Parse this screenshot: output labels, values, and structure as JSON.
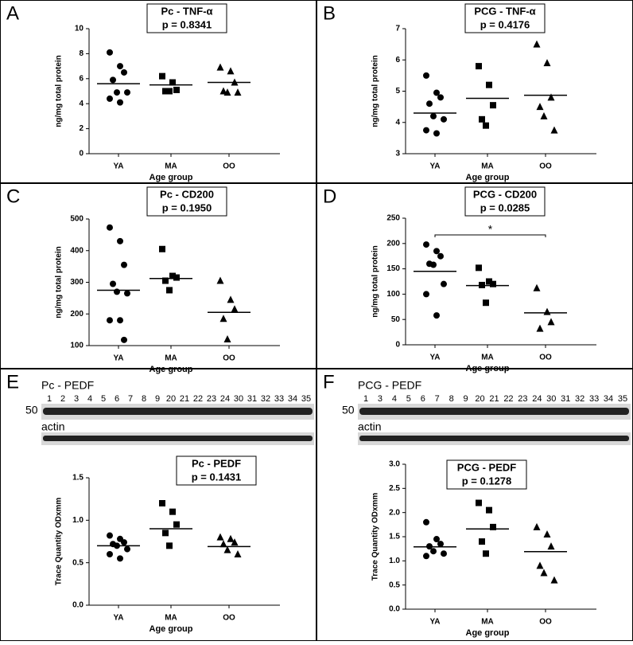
{
  "chart_data": [
    {
      "type": "dotplot",
      "panel": "A",
      "title": "Pc - TNF-α",
      "subtitle": "p = 0.8341",
      "y_label": "ng/mg total protein",
      "x_label": "Age group",
      "categories": [
        "YA",
        "MA",
        "OO"
      ],
      "markers": [
        "circle",
        "square",
        "triangle"
      ],
      "color": "#000000",
      "groups": [
        [
          8.1,
          7.0,
          6.5,
          5.9,
          4.9,
          4.9,
          4.4,
          4.1
        ],
        [
          6.2,
          5.7,
          5.1,
          5.0,
          5.0
        ],
        [
          6.9,
          6.6,
          5.7,
          5.0,
          4.9,
          4.9
        ]
      ],
      "means": [
        5.6,
        5.5,
        5.7
      ],
      "ylim": [
        0,
        10
      ],
      "yticks": [
        0,
        2,
        4,
        6,
        8,
        10
      ]
    },
    {
      "type": "dotplot",
      "panel": "B",
      "title": "PCG - TNF-α",
      "subtitle": "p = 0.4176",
      "y_label": "ng/mg total protein",
      "x_label": "Age group",
      "categories": [
        "YA",
        "MA",
        "OO"
      ],
      "markers": [
        "circle",
        "square",
        "triangle"
      ],
      "color": "#000000",
      "groups": [
        [
          5.5,
          4.95,
          4.8,
          4.6,
          4.2,
          4.1,
          3.75,
          3.65
        ],
        [
          5.8,
          5.2,
          4.55,
          4.1,
          3.9
        ],
        [
          6.5,
          5.9,
          4.8,
          4.5,
          4.2,
          3.75
        ]
      ],
      "means": [
        4.3,
        4.77,
        4.87
      ],
      "ylim": [
        3,
        7
      ],
      "yticks": [
        3,
        4,
        5,
        6,
        7
      ]
    },
    {
      "type": "dotplot",
      "panel": "C",
      "title": "Pc - CD200",
      "subtitle": "p = 0.1950",
      "y_label": "ng/mg total protein",
      "x_label": "Age group",
      "categories": [
        "YA",
        "MA",
        "OO"
      ],
      "markers": [
        "circle",
        "square",
        "triangle"
      ],
      "color": "#000000",
      "groups": [
        [
          473,
          430,
          355,
          295,
          270,
          265,
          180,
          180,
          118
        ],
        [
          405,
          320,
          315,
          305,
          275
        ],
        [
          305,
          245,
          215,
          185,
          120
        ]
      ],
      "means": [
        275,
        312,
        205
      ],
      "ylim": [
        100,
        500
      ],
      "yticks": [
        100,
        200,
        300,
        400,
        500
      ]
    },
    {
      "type": "dotplot",
      "panel": "D",
      "title": "PCG - CD200",
      "subtitle": "p = 0.0285",
      "y_label": "ng/mg total protein",
      "x_label": "Age group",
      "categories": [
        "YA",
        "MA",
        "OO"
      ],
      "markers": [
        "circle",
        "square",
        "triangle"
      ],
      "color": "#000000",
      "groups": [
        [
          198,
          185,
          175,
          160,
          158,
          120,
          100,
          58
        ],
        [
          152,
          125,
          120,
          118,
          83
        ],
        [
          112,
          65,
          45,
          32
        ]
      ],
      "means": [
        145,
        117,
        63
      ],
      "ylim": [
        0,
        250
      ],
      "yticks": [
        0,
        50,
        100,
        150,
        200,
        250
      ],
      "annotation": "*"
    },
    {
      "type": "dotplot",
      "panel": "E",
      "title": "Pc - PEDF",
      "subtitle": "p = 0.1431",
      "y_label": "Trace  Quantity ODxmm",
      "x_label": "Age group",
      "categories": [
        "YA",
        "MA",
        "OO"
      ],
      "markers": [
        "circle",
        "square",
        "triangle"
      ],
      "color": "#000000",
      "groups": [
        [
          0.82,
          0.78,
          0.74,
          0.72,
          0.7,
          0.66,
          0.6,
          0.55
        ],
        [
          1.2,
          1.1,
          0.95,
          0.85,
          0.7
        ],
        [
          0.8,
          0.78,
          0.74,
          0.72,
          0.65,
          0.6
        ]
      ],
      "means": [
        0.7,
        0.9,
        0.69
      ],
      "ylim": [
        0,
        1.5
      ],
      "yticks": [
        {
          "value": 0,
          "label": "0.0"
        },
        {
          "value": 0.5,
          "label": "0.5"
        },
        {
          "value": 1,
          "label": "1.0"
        },
        {
          "value": 1.5,
          "label": "1.5"
        }
      ],
      "blot": {
        "label": "Pc - PEDF",
        "marker": "50",
        "loading": "actin",
        "lanes": [
          "1",
          "2",
          "3",
          "4",
          "5",
          "6",
          "7",
          "8",
          "9",
          "20",
          "21",
          "22",
          "23",
          "24",
          "30",
          "31",
          "32",
          "33",
          "34",
          "35"
        ]
      }
    },
    {
      "type": "dotplot",
      "panel": "F",
      "title": "PCG - PEDF",
      "subtitle": "p = 0.1278",
      "y_label": "Trace  Quantity ODxmm",
      "x_label": "Age group",
      "categories": [
        "YA",
        "MA",
        "OO"
      ],
      "markers": [
        "circle",
        "square",
        "triangle"
      ],
      "color": "#000000",
      "groups": [
        [
          1.8,
          1.45,
          1.35,
          1.3,
          1.2,
          1.15,
          1.1
        ],
        [
          2.2,
          2.05,
          1.7,
          1.4,
          1.15
        ],
        [
          1.7,
          1.55,
          1.3,
          0.9,
          0.75,
          0.6
        ]
      ],
      "means": [
        1.29,
        1.66,
        1.19
      ],
      "ylim": [
        0,
        3
      ],
      "yticks": [
        {
          "value": 0,
          "label": "0.0"
        },
        {
          "value": 0.5,
          "label": "0.5"
        },
        {
          "value": 1,
          "label": "1.0"
        },
        {
          "value": 1.5,
          "label": "1.5"
        },
        {
          "value": 2,
          "label": "2.0"
        },
        {
          "value": 2.5,
          "label": "2.5"
        },
        {
          "value": 3,
          "label": "3.0"
        }
      ],
      "blot": {
        "label": "PCG - PEDF",
        "marker": "50",
        "loading": "actin",
        "lanes": [
          "1",
          "3",
          "4",
          "5",
          "6",
          "7",
          "8",
          "9",
          "20",
          "21",
          "22",
          "23",
          "24",
          "30",
          "31",
          "32",
          "33",
          "34",
          "35"
        ]
      }
    }
  ]
}
